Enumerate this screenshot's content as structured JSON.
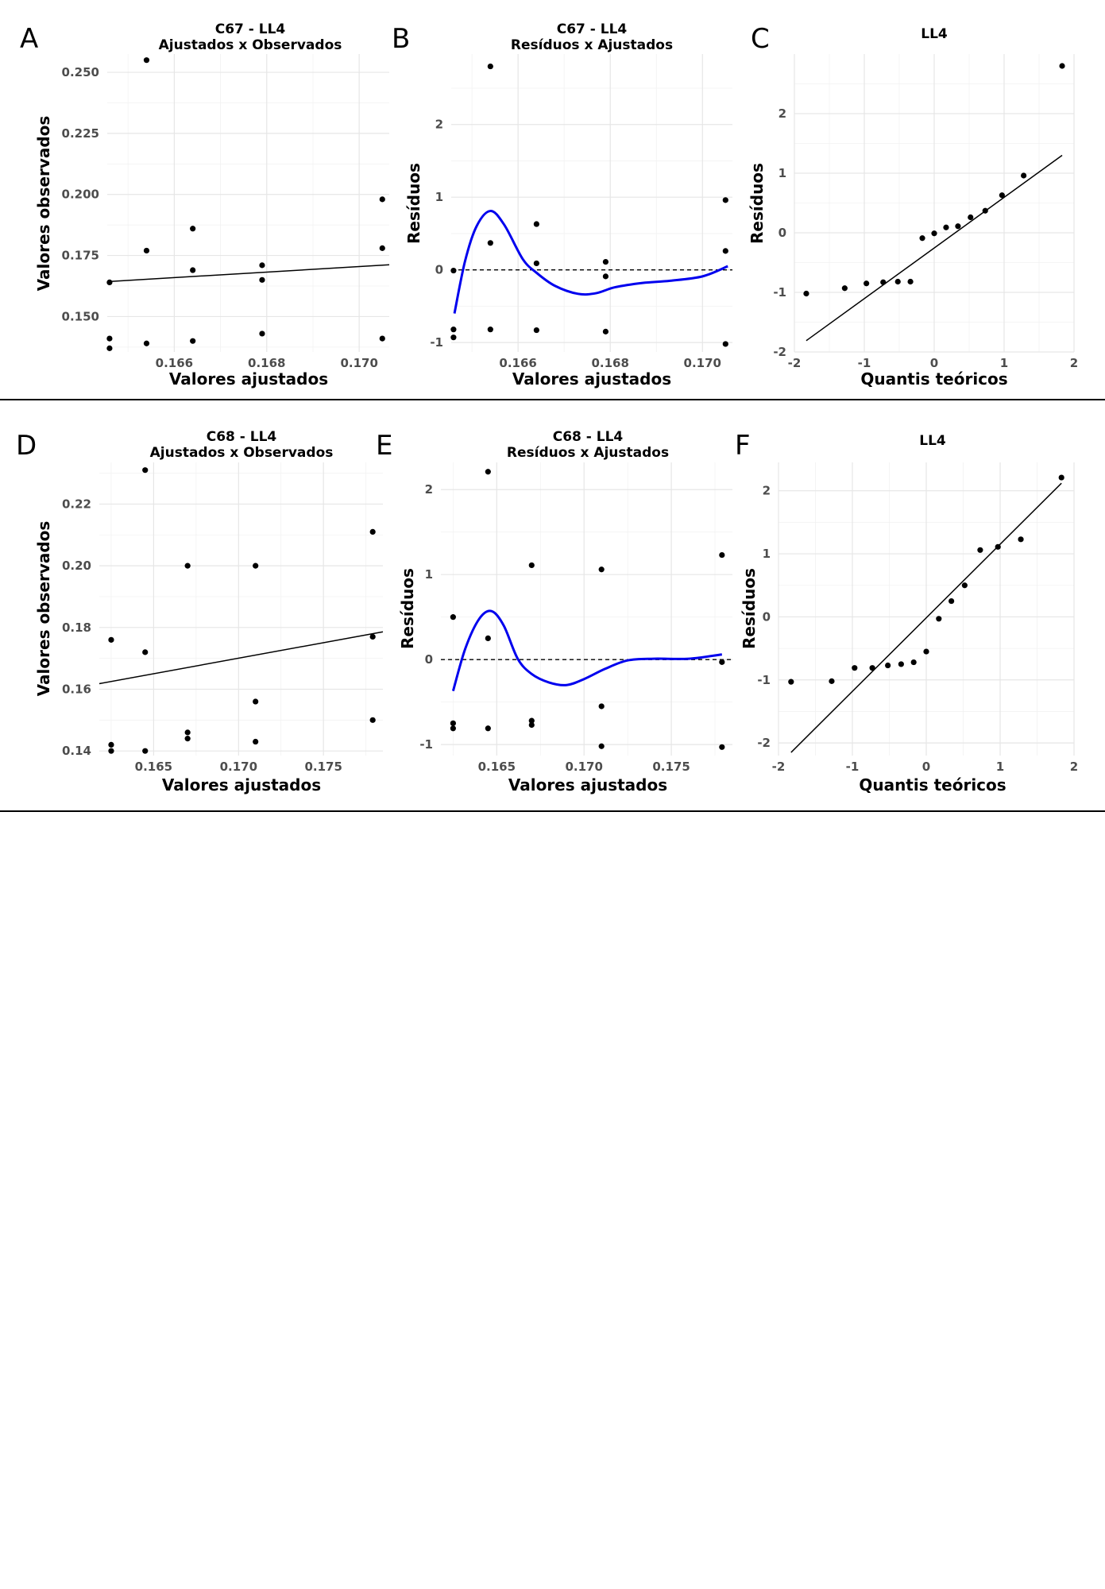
{
  "panels": [
    {
      "letter": "A",
      "chart_data": {
        "type": "scatter",
        "title": "C67 - LL4\nAjustados x Observados",
        "xlabel": "Valores ajustados",
        "ylabel": "Valores observados",
        "xlim": [
          0.16455,
          0.17065
        ],
        "ylim": [
          0.1355,
          0.2575
        ],
        "x_ticks": [
          0.166,
          0.168,
          0.17
        ],
        "x_tick_labels": [
          "0.166",
          "0.168",
          "0.170"
        ],
        "y_ticks": [
          0.15,
          0.175,
          0.2,
          0.225,
          0.25
        ],
        "y_tick_labels": [
          "0.150",
          "0.175",
          "0.200",
          "0.225",
          "0.250"
        ],
        "points": [
          {
            "x": 0.1646,
            "y": 0.164
          },
          {
            "x": 0.1646,
            "y": 0.141
          },
          {
            "x": 0.1646,
            "y": 0.137
          },
          {
            "x": 0.1654,
            "y": 0.255
          },
          {
            "x": 0.1654,
            "y": 0.177
          },
          {
            "x": 0.1654,
            "y": 0.139
          },
          {
            "x": 0.1664,
            "y": 0.186
          },
          {
            "x": 0.1664,
            "y": 0.169
          },
          {
            "x": 0.1664,
            "y": 0.14
          },
          {
            "x": 0.1679,
            "y": 0.171
          },
          {
            "x": 0.1679,
            "y": 0.165
          },
          {
            "x": 0.1679,
            "y": 0.143
          },
          {
            "x": 0.1705,
            "y": 0.198
          },
          {
            "x": 0.1705,
            "y": 0.178
          },
          {
            "x": 0.1705,
            "y": 0.141
          }
        ],
        "fit_line": [
          {
            "x": 0.16455,
            "y": 0.1643
          },
          {
            "x": 0.17065,
            "y": 0.1712
          }
        ],
        "grid": true
      }
    },
    {
      "letter": "B",
      "chart_data": {
        "type": "scatter",
        "title": "C67 - LL4\nResíduos x Ajustados",
        "xlabel": "Valores ajustados",
        "ylabel": "Resíduos",
        "xlim": [
          0.16455,
          0.17065
        ],
        "ylim": [
          -1.13,
          2.97
        ],
        "x_ticks": [
          0.166,
          0.168,
          0.17
        ],
        "x_tick_labels": [
          "0.166",
          "0.168",
          "0.170"
        ],
        "y_ticks": [
          -1,
          0,
          1,
          2
        ],
        "y_tick_labels": [
          "-1",
          "0",
          "1",
          "2"
        ],
        "points": [
          {
            "x": 0.1646,
            "y": -0.01
          },
          {
            "x": 0.1646,
            "y": -0.82
          },
          {
            "x": 0.1646,
            "y": -0.93
          },
          {
            "x": 0.1654,
            "y": 2.8
          },
          {
            "x": 0.1654,
            "y": 0.37
          },
          {
            "x": 0.1654,
            "y": -0.82
          },
          {
            "x": 0.1664,
            "y": 0.63
          },
          {
            "x": 0.1664,
            "y": 0.09
          },
          {
            "x": 0.1664,
            "y": -0.83
          },
          {
            "x": 0.1679,
            "y": 0.11
          },
          {
            "x": 0.1679,
            "y": -0.09
          },
          {
            "x": 0.1679,
            "y": -0.85
          },
          {
            "x": 0.1705,
            "y": 0.96
          },
          {
            "x": 0.1705,
            "y": 0.26
          },
          {
            "x": 0.1705,
            "y": -1.02
          }
        ],
        "reference_line_y": 0,
        "smooth": [
          {
            "x": 0.16462,
            "y": -0.6
          },
          {
            "x": 0.16485,
            "y": 0.12
          },
          {
            "x": 0.1651,
            "y": 0.6
          },
          {
            "x": 0.1654,
            "y": 0.81
          },
          {
            "x": 0.1657,
            "y": 0.62
          },
          {
            "x": 0.1661,
            "y": 0.15
          },
          {
            "x": 0.1664,
            "y": -0.04
          },
          {
            "x": 0.1668,
            "y": -0.22
          },
          {
            "x": 0.1673,
            "y": -0.33
          },
          {
            "x": 0.1677,
            "y": -0.32
          },
          {
            "x": 0.1681,
            "y": -0.24
          },
          {
            "x": 0.1687,
            "y": -0.18
          },
          {
            "x": 0.1693,
            "y": -0.15
          },
          {
            "x": 0.17,
            "y": -0.09
          },
          {
            "x": 0.17055,
            "y": 0.05
          }
        ],
        "grid": true
      }
    },
    {
      "letter": "C",
      "chart_data": {
        "type": "scatter",
        "title": "LL4",
        "xlabel": "Quantis teóricos",
        "ylabel": "Resíduos",
        "xlim": [
          -2.0,
          2.0
        ],
        "ylim": [
          -2.0,
          3.0
        ],
        "x_ticks": [
          -2,
          -1,
          0,
          1,
          2
        ],
        "x_tick_labels": [
          "-2",
          "-1",
          "0",
          "1",
          "2"
        ],
        "y_ticks": [
          -2,
          -1,
          0,
          1,
          2
        ],
        "y_tick_labels": [
          "-2",
          "-1",
          "0",
          "1",
          "2"
        ],
        "points": [
          {
            "x": -1.83,
            "y": -1.02
          },
          {
            "x": -1.28,
            "y": -0.93
          },
          {
            "x": -0.97,
            "y": -0.85
          },
          {
            "x": -0.73,
            "y": -0.83
          },
          {
            "x": -0.52,
            "y": -0.82
          },
          {
            "x": -0.34,
            "y": -0.82
          },
          {
            "x": -0.17,
            "y": -0.09
          },
          {
            "x": 0.0,
            "y": -0.01
          },
          {
            "x": 0.17,
            "y": 0.09
          },
          {
            "x": 0.34,
            "y": 0.11
          },
          {
            "x": 0.52,
            "y": 0.26
          },
          {
            "x": 0.73,
            "y": 0.37
          },
          {
            "x": 0.97,
            "y": 0.63
          },
          {
            "x": 1.28,
            "y": 0.96
          },
          {
            "x": 1.83,
            "y": 2.8
          }
        ],
        "fit_line": [
          {
            "x": -1.83,
            "y": -1.81
          },
          {
            "x": 1.83,
            "y": 1.3
          }
        ],
        "grid": true
      }
    },
    {
      "letter": "D",
      "chart_data": {
        "type": "scatter",
        "title": "C68 - LL4\nAjustados x Observados",
        "xlabel": "Valores ajustados",
        "ylabel": "Valores observados",
        "xlim": [
          0.1618,
          0.1785
        ],
        "ylim": [
          0.1385,
          0.2335
        ],
        "x_ticks": [
          0.165,
          0.17,
          0.175
        ],
        "x_tick_labels": [
          "0.165",
          "0.170",
          "0.175"
        ],
        "y_ticks": [
          0.14,
          0.16,
          0.18,
          0.2,
          0.22
        ],
        "y_tick_labels": [
          "0.14",
          "0.16",
          "0.18",
          "0.20",
          "0.22"
        ],
        "points": [
          {
            "x": 0.1625,
            "y": 0.176
          },
          {
            "x": 0.1625,
            "y": 0.142
          },
          {
            "x": 0.1625,
            "y": 0.14
          },
          {
            "x": 0.1645,
            "y": 0.231
          },
          {
            "x": 0.1645,
            "y": 0.172
          },
          {
            "x": 0.1645,
            "y": 0.14
          },
          {
            "x": 0.167,
            "y": 0.2
          },
          {
            "x": 0.167,
            "y": 0.146
          },
          {
            "x": 0.167,
            "y": 0.144
          },
          {
            "x": 0.171,
            "y": 0.2
          },
          {
            "x": 0.171,
            "y": 0.156
          },
          {
            "x": 0.171,
            "y": 0.143
          },
          {
            "x": 0.1779,
            "y": 0.211
          },
          {
            "x": 0.1779,
            "y": 0.177
          },
          {
            "x": 0.1779,
            "y": 0.15
          }
        ],
        "fit_line": [
          {
            "x": 0.1618,
            "y": 0.1618
          },
          {
            "x": 0.1785,
            "y": 0.1786
          }
        ],
        "grid": true
      }
    },
    {
      "letter": "E",
      "chart_data": {
        "type": "scatter",
        "title": "C68 - LL4\nResíduos x Ajustados",
        "xlabel": "Valores ajustados",
        "ylabel": "Resíduos",
        "xlim": [
          0.1618,
          0.1785
        ],
        "ylim": [
          -1.13,
          2.32
        ],
        "x_ticks": [
          0.165,
          0.17,
          0.175
        ],
        "x_tick_labels": [
          "0.165",
          "0.170",
          "0.175"
        ],
        "y_ticks": [
          -1,
          0,
          1,
          2
        ],
        "y_tick_labels": [
          "-1",
          "0",
          "1",
          "2"
        ],
        "points": [
          {
            "x": 0.1625,
            "y": 0.5
          },
          {
            "x": 0.1625,
            "y": -0.75
          },
          {
            "x": 0.1625,
            "y": -0.81
          },
          {
            "x": 0.1645,
            "y": 2.21
          },
          {
            "x": 0.1645,
            "y": 0.25
          },
          {
            "x": 0.1645,
            "y": -0.81
          },
          {
            "x": 0.167,
            "y": 1.11
          },
          {
            "x": 0.167,
            "y": -0.72
          },
          {
            "x": 0.167,
            "y": -0.77
          },
          {
            "x": 0.171,
            "y": 1.06
          },
          {
            "x": 0.171,
            "y": -0.55
          },
          {
            "x": 0.171,
            "y": -1.02
          },
          {
            "x": 0.1779,
            "y": 1.23
          },
          {
            "x": 0.1779,
            "y": -0.03
          },
          {
            "x": 0.1779,
            "y": -1.03
          }
        ],
        "reference_line_y": 0,
        "smooth": [
          {
            "x": 0.1625,
            "y": -0.37
          },
          {
            "x": 0.1632,
            "y": 0.13
          },
          {
            "x": 0.164,
            "y": 0.48
          },
          {
            "x": 0.1647,
            "y": 0.57
          },
          {
            "x": 0.1654,
            "y": 0.4
          },
          {
            "x": 0.1662,
            "y": 0.01
          },
          {
            "x": 0.167,
            "y": -0.17
          },
          {
            "x": 0.168,
            "y": -0.27
          },
          {
            "x": 0.169,
            "y": -0.3
          },
          {
            "x": 0.17,
            "y": -0.23
          },
          {
            "x": 0.1712,
            "y": -0.11
          },
          {
            "x": 0.1725,
            "y": -0.01
          },
          {
            "x": 0.174,
            "y": 0.01
          },
          {
            "x": 0.176,
            "y": 0.01
          },
          {
            "x": 0.1779,
            "y": 0.06
          }
        ],
        "grid": true
      }
    },
    {
      "letter": "F",
      "chart_data": {
        "type": "scatter",
        "title": "LL4",
        "xlabel": "Quantis teóricos",
        "ylabel": "Resíduos",
        "xlim": [
          -2.0,
          2.0
        ],
        "ylim": [
          -2.2,
          2.45
        ],
        "x_ticks": [
          -2,
          -1,
          0,
          1,
          2
        ],
        "x_tick_labels": [
          "-2",
          "-1",
          "0",
          "1",
          "2"
        ],
        "y_ticks": [
          -2,
          -1,
          0,
          1,
          2
        ],
        "y_tick_labels": [
          "-2",
          "-1",
          "0",
          "1",
          "2"
        ],
        "points": [
          {
            "x": -1.83,
            "y": -1.03
          },
          {
            "x": -1.28,
            "y": -1.02
          },
          {
            "x": -0.97,
            "y": -0.81
          },
          {
            "x": -0.73,
            "y": -0.81
          },
          {
            "x": -0.52,
            "y": -0.77
          },
          {
            "x": -0.34,
            "y": -0.75
          },
          {
            "x": -0.17,
            "y": -0.72
          },
          {
            "x": 0.0,
            "y": -0.55
          },
          {
            "x": 0.17,
            "y": -0.03
          },
          {
            "x": 0.34,
            "y": 0.25
          },
          {
            "x": 0.52,
            "y": 0.5
          },
          {
            "x": 0.73,
            "y": 1.06
          },
          {
            "x": 0.97,
            "y": 1.11
          },
          {
            "x": 1.28,
            "y": 1.23
          },
          {
            "x": 1.83,
            "y": 2.21
          }
        ],
        "fit_line": [
          {
            "x": -1.83,
            "y": -2.15
          },
          {
            "x": 1.83,
            "y": 2.12
          }
        ],
        "grid": true
      }
    }
  ],
  "colors": {
    "points": "#000000",
    "fit_line": "#000000",
    "smooth_line": "#0000ee",
    "grid_major": "#e6e6e6",
    "grid_minor": "#f2f2f2",
    "tick_text": "#4d4d4d",
    "separator": "#000000"
  }
}
